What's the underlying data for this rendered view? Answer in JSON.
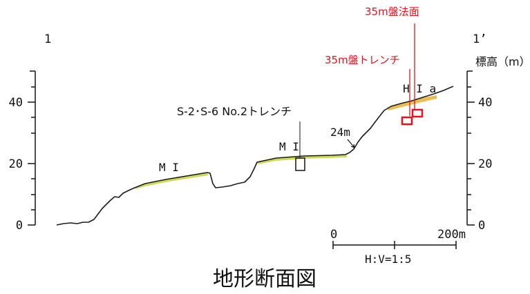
{
  "title": "地形断面図",
  "section": {
    "start_label": "1",
    "end_label": "1’"
  },
  "elevation_axis": {
    "label": "標高（m）",
    "ticks": [
      "0",
      "20",
      "40"
    ]
  },
  "scale_bar": {
    "start": "0",
    "end": "200m",
    "ratio": "H:V=1:5"
  },
  "annotations": {
    "terrace_left": "M I",
    "terrace_middle": "M I",
    "terrace_right": "H I a",
    "trench_center": "S-2･S-6 No.2トレンチ",
    "height_mark": "24m",
    "trench_35m": "35m盤トレンチ",
    "slope_35m": "35m盤法面"
  },
  "colors": {
    "profile": "#1a1a1a",
    "terrace_fill": "#c8d43c",
    "terrace_fill_right": "#e8b030",
    "highlight": "#e8101a"
  }
}
